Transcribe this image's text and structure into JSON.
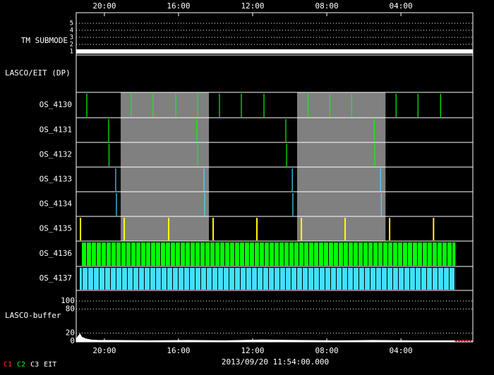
{
  "time_axis": {
    "xlim": [
      0,
      21.4
    ],
    "xticks": [
      {
        "value": 1.52,
        "label": "20:00"
      },
      {
        "value": 5.52,
        "label": "16:00"
      },
      {
        "value": 9.52,
        "label": "12:00"
      },
      {
        "value": 13.52,
        "label": "08:00"
      },
      {
        "value": 17.52,
        "label": "04:00"
      }
    ]
  },
  "timestamp": "2013/09/20 11:54:00.000",
  "legend": [
    {
      "name": "C1",
      "color": "#ff3030"
    },
    {
      "name": "C2",
      "color": "#00ff00"
    },
    {
      "name": "C3",
      "color": "#ffffff"
    },
    {
      "name": "EIT",
      "color": "#ffffff"
    }
  ],
  "tm_submode": {
    "label": "TM SUBMODE",
    "ylim": [
      1,
      5
    ],
    "yticks": [
      1,
      2,
      3,
      4,
      5
    ],
    "level": 1
  },
  "lasco_eit": {
    "label": "LASCO/EIT (DP)"
  },
  "gaps": [
    [
      2.4,
      7.16
    ],
    [
      11.92,
      16.69
    ]
  ],
  "rows": [
    {
      "label": "OS_4130",
      "color": "#00ff00",
      "events": [
        0.57,
        2.97,
        4.15,
        5.37,
        6.55,
        7.73,
        8.91,
        10.13,
        12.5,
        13.68,
        14.86,
        17.26,
        18.44,
        19.66
      ]
    },
    {
      "label": "OS_4131",
      "color": "#00ff00",
      "events": [
        1.75,
        6.51,
        11.31,
        16.08
      ]
    },
    {
      "label": "OS_4132",
      "color": "#00ff00",
      "events": [
        1.77,
        6.55,
        11.35,
        16.11
      ]
    },
    {
      "label": "OS_4133",
      "color": "#40e0ff",
      "events": [
        2.13,
        6.89,
        11.66,
        16.42
      ]
    },
    {
      "label": "OS_4134",
      "color": "#40e0ff",
      "events": [
        2.17,
        6.93,
        11.69,
        16.46
      ]
    },
    {
      "label": "OS_4135",
      "color": "#ffff00",
      "events": [
        0.23,
        2.59,
        4.99,
        7.39,
        9.75,
        12.15,
        14.51,
        16.91,
        19.28
      ]
    }
  ],
  "dense_rows": [
    {
      "label": "OS_4136",
      "color": "#00ff00",
      "span": [
        0.27,
        20.46
      ]
    },
    {
      "label": "OS_4137",
      "color": "#40e0ff",
      "span": [
        0.19,
        20.46
      ]
    }
  ],
  "buffer": {
    "label": "LASCO-buffer",
    "ylim": [
      0,
      100
    ],
    "yticks": [
      0,
      20,
      80,
      100
    ],
    "x": [
      0,
      0.1,
      0.2,
      0.3,
      0.5,
      0.8,
      1.2,
      2,
      4,
      6,
      8,
      10,
      12,
      14,
      16,
      18,
      20.4
    ],
    "values": [
      5,
      12,
      18,
      10,
      6,
      3,
      2,
      2,
      1,
      2,
      1,
      3,
      2,
      1,
      2,
      1,
      1
    ]
  }
}
